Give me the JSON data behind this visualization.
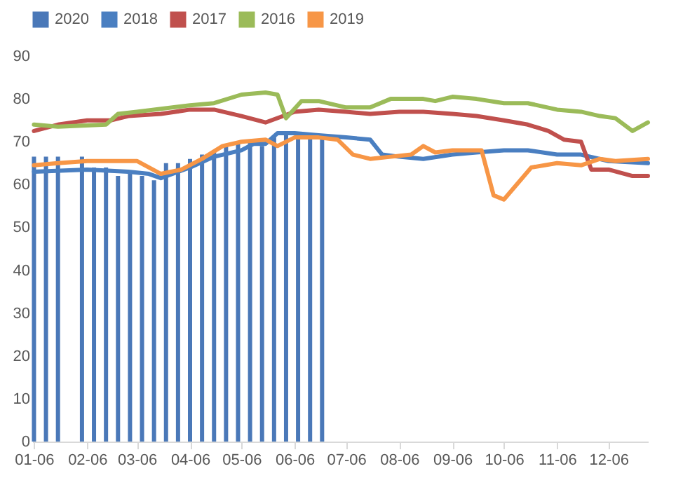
{
  "chart_data": {
    "type": "bar",
    "xlim": [
      "--01-05",
      "--12-29"
    ],
    "xticks": [
      {
        "value": "--01-06",
        "label": "01-06"
      },
      {
        "value": "--02-06",
        "label": "02-06"
      },
      {
        "value": "--03-06",
        "label": "03-06"
      },
      {
        "value": "--04-06",
        "label": "04-06"
      },
      {
        "value": "--05-06",
        "label": "05-06"
      },
      {
        "value": "--06-06",
        "label": "06-06"
      },
      {
        "value": "--07-06",
        "label": "07-06"
      },
      {
        "value": "--08-06",
        "label": "08-06"
      },
      {
        "value": "--09-06",
        "label": "09-06"
      },
      {
        "value": "--10-06",
        "label": "10-06"
      },
      {
        "value": "--11-06",
        "label": "11-06"
      },
      {
        "value": "--12-06",
        "label": "12-06"
      }
    ],
    "ylim": [
      0,
      90
    ],
    "yticks": [
      0,
      10,
      20,
      30,
      40,
      50,
      60,
      70,
      80,
      90
    ],
    "grid": false,
    "legend": "top",
    "series": [
      {
        "name": "2020",
        "color": "#4a78b8",
        "x": [
          "--01-06",
          "--01-13",
          "--01-20",
          "--02-03",
          "--02-10",
          "--02-17",
          "--02-24",
          "--03-02",
          "--03-09",
          "--03-16",
          "--03-23",
          "--03-30",
          "--04-06",
          "--04-13",
          "--04-20",
          "--04-27",
          "--05-04",
          "--05-11",
          "--05-18",
          "--05-25",
          "--06-01",
          "--06-08",
          "--06-15",
          "--06-22"
        ],
        "values": [
          66.5,
          66.5,
          66.5,
          66.5,
          64,
          64,
          62,
          63,
          62,
          61,
          65,
          65,
          66,
          67,
          68,
          69,
          70,
          70,
          69,
          71,
          71.5,
          71.5,
          71.5,
          71.5
        ]
      },
      {
        "name": "2018",
        "type": "line",
        "color": "#4a7fc1",
        "x": [
          "--01-06",
          "--02-06",
          "--03-01",
          "--03-13",
          "--03-20",
          "--04-06",
          "--04-20",
          "--05-06",
          "--05-13",
          "--05-20",
          "--05-27",
          "--06-06",
          "--06-20",
          "--07-06",
          "--07-20",
          "--07-27",
          "--08-06",
          "--08-20",
          "--09-06",
          "--09-20",
          "--10-06",
          "--10-20",
          "--11-06",
          "--11-20",
          "--12-06",
          "--12-29"
        ],
        "values": [
          63,
          63.5,
          63,
          62.5,
          61.5,
          64,
          66.5,
          68,
          69.5,
          69.5,
          72,
          72,
          71.5,
          71,
          70.5,
          67,
          66.5,
          66,
          67,
          67.5,
          68,
          68,
          67,
          67,
          65.5,
          65
        ]
      },
      {
        "name": "2017",
        "type": "line",
        "color": "#c0504d",
        "x": [
          "--01-06",
          "--01-20",
          "--02-06",
          "--02-20",
          "--03-01",
          "--03-20",
          "--04-06",
          "--04-20",
          "--05-06",
          "--05-20",
          "--06-06",
          "--06-20",
          "--07-06",
          "--07-20",
          "--08-06",
          "--08-20",
          "--09-06",
          "--09-20",
          "--10-06",
          "--10-20",
          "--11-01",
          "--11-10",
          "--11-20",
          "--11-26",
          "--12-06",
          "--12-20",
          "--12-29"
        ],
        "values": [
          72.5,
          74,
          75,
          75,
          76,
          76.5,
          77.5,
          77.5,
          76,
          74.5,
          77,
          77.5,
          77,
          76.5,
          77,
          77,
          76.5,
          76,
          75,
          74,
          72.5,
          70.5,
          70,
          63.5,
          63.5,
          62,
          62
        ]
      },
      {
        "name": "2016",
        "type": "line",
        "color": "#9bbb59",
        "x": [
          "--01-06",
          "--01-20",
          "--02-17",
          "--02-24",
          "--03-06",
          "--04-06",
          "--04-20",
          "--05-06",
          "--05-20",
          "--05-27",
          "--06-01",
          "--06-10",
          "--06-20",
          "--07-06",
          "--07-20",
          "--08-01",
          "--08-20",
          "--08-27",
          "--09-06",
          "--09-20",
          "--10-06",
          "--10-20",
          "--11-06",
          "--11-20",
          "--12-01",
          "--12-10",
          "--12-20",
          "--12-29"
        ],
        "values": [
          74,
          73.5,
          74,
          76.5,
          77,
          78.5,
          79,
          81,
          81.5,
          81,
          75.5,
          79.5,
          79.5,
          78,
          78,
          80,
          80,
          79.5,
          80.5,
          80,
          79,
          79,
          77.5,
          77,
          76,
          75.5,
          72.5,
          74.5
        ]
      },
      {
        "name": "2019",
        "type": "line",
        "color": "#f79646",
        "x": [
          "--01-06",
          "--01-20",
          "--02-06",
          "--02-20",
          "--03-06",
          "--03-13",
          "--03-20",
          "--04-01",
          "--04-13",
          "--04-25",
          "--05-06",
          "--05-20",
          "--05-27",
          "--06-06",
          "--06-20",
          "--07-01",
          "--07-10",
          "--07-20",
          "--08-01",
          "--08-13",
          "--08-20",
          "--08-27",
          "--09-06",
          "--09-23",
          "--09-30",
          "--10-06",
          "--10-22",
          "--11-06",
          "--11-20",
          "--12-01",
          "--12-10",
          "--12-29"
        ],
        "values": [
          64.5,
          65,
          65.5,
          65.5,
          65.5,
          64,
          62.5,
          63.5,
          66,
          69,
          70,
          70.5,
          69,
          71,
          71,
          70.5,
          67,
          66,
          66.5,
          67,
          69,
          67.5,
          68,
          68,
          57.5,
          56.5,
          64,
          65,
          64.5,
          66,
          65.5,
          66
        ]
      }
    ]
  }
}
